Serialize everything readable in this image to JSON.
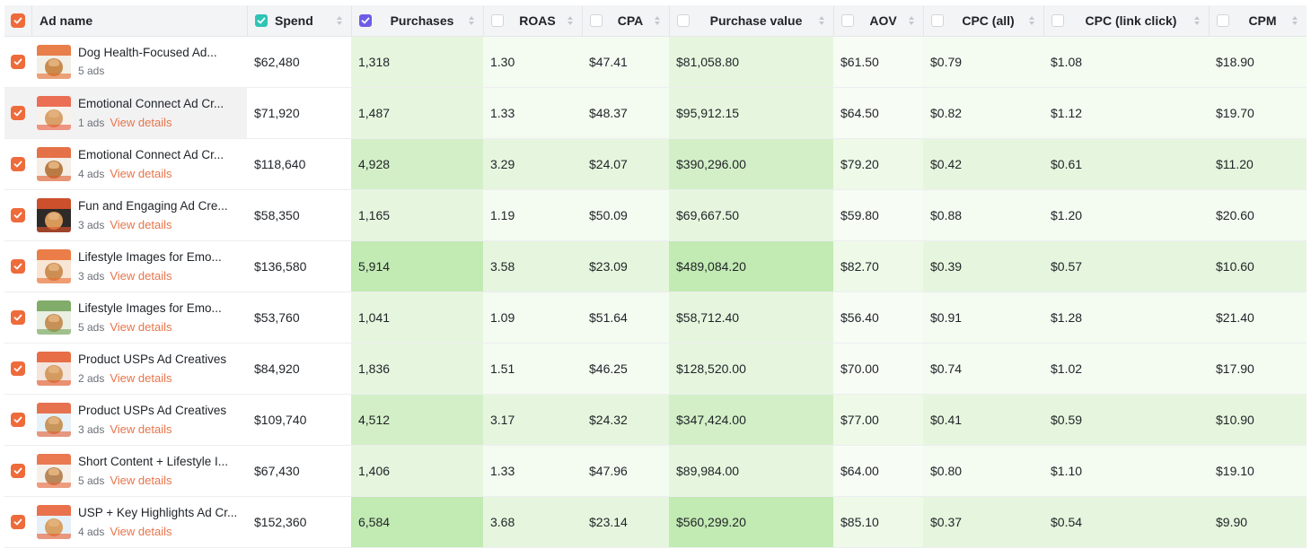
{
  "header": {
    "ad_name": "Ad name",
    "columns": [
      "Spend",
      "Purchases",
      "ROAS",
      "CPA",
      "Purchase value",
      "AOV",
      "CPC (all)",
      "CPC (link click)",
      "CPM"
    ]
  },
  "view_details_label": "View details",
  "colors": {
    "accent": "#ee6b3b",
    "link": "#e8744a",
    "spend_checkbox": "#2ec4b6",
    "purchases_checkbox": "#6c5ce7"
  },
  "rows": [
    {
      "name": "Dog Health-Focused Ad...",
      "ads": "5 ads",
      "view_details": false,
      "spend": "$62,480",
      "purchases": "1,318",
      "roas": "1.30",
      "cpa": "$47.41",
      "purchase_value": "$81,058.80",
      "aov": "$61.50",
      "cpc_all": "$0.79",
      "cpc_link": "$1.08",
      "cpm": "$18.90"
    },
    {
      "name": "Emotional Connect Ad Cr...",
      "ads": "1 ads",
      "view_details": true,
      "spend": "$71,920",
      "purchases": "1,487",
      "roas": "1.33",
      "cpa": "$48.37",
      "purchase_value": "$95,912.15",
      "aov": "$64.50",
      "cpc_all": "$0.82",
      "cpc_link": "$1.12",
      "cpm": "$19.70"
    },
    {
      "name": "Emotional Connect Ad Cr...",
      "ads": "4 ads",
      "view_details": true,
      "spend": "$118,640",
      "purchases": "4,928",
      "roas": "3.29",
      "cpa": "$24.07",
      "purchase_value": "$390,296.00",
      "aov": "$79.20",
      "cpc_all": "$0.42",
      "cpc_link": "$0.61",
      "cpm": "$11.20"
    },
    {
      "name": "Fun and Engaging Ad Cre...",
      "ads": "3 ads",
      "view_details": true,
      "spend": "$58,350",
      "purchases": "1,165",
      "roas": "1.19",
      "cpa": "$50.09",
      "purchase_value": "$69,667.50",
      "aov": "$59.80",
      "cpc_all": "$0.88",
      "cpc_link": "$1.20",
      "cpm": "$20.60"
    },
    {
      "name": "Lifestyle Images for Emo...",
      "ads": "3 ads",
      "view_details": true,
      "spend": "$136,580",
      "purchases": "5,914",
      "roas": "3.58",
      "cpa": "$23.09",
      "purchase_value": "$489,084.20",
      "aov": "$82.70",
      "cpc_all": "$0.39",
      "cpc_link": "$0.57",
      "cpm": "$10.60"
    },
    {
      "name": "Lifestyle Images for Emo...",
      "ads": "5 ads",
      "view_details": true,
      "spend": "$53,760",
      "purchases": "1,041",
      "roas": "1.09",
      "cpa": "$51.64",
      "purchase_value": "$58,712.40",
      "aov": "$56.40",
      "cpc_all": "$0.91",
      "cpc_link": "$1.28",
      "cpm": "$21.40"
    },
    {
      "name": "Product USPs Ad Creatives",
      "ads": "2 ads",
      "view_details": true,
      "spend": "$84,920",
      "purchases": "1,836",
      "roas": "1.51",
      "cpa": "$46.25",
      "purchase_value": "$128,520.00",
      "aov": "$70.00",
      "cpc_all": "$0.74",
      "cpc_link": "$1.02",
      "cpm": "$17.90"
    },
    {
      "name": "Product USPs Ad Creatives",
      "ads": "3 ads",
      "view_details": true,
      "spend": "$109,740",
      "purchases": "4,512",
      "roas": "3.17",
      "cpa": "$24.32",
      "purchase_value": "$347,424.00",
      "aov": "$77.00",
      "cpc_all": "$0.41",
      "cpc_link": "$0.59",
      "cpm": "$10.90"
    },
    {
      "name": "Short Content + Lifestyle I...",
      "ads": "5 ads",
      "view_details": true,
      "spend": "$67,430",
      "purchases": "1,406",
      "roas": "1.33",
      "cpa": "$47.96",
      "purchase_value": "$89,984.00",
      "aov": "$64.00",
      "cpc_all": "$0.80",
      "cpc_link": "$1.10",
      "cpm": "$19.10"
    },
    {
      "name": "USP + Key Highlights Ad Cr...",
      "ads": "4 ads",
      "view_details": true,
      "spend": "$152,360",
      "purchases": "6,584",
      "roas": "3.68",
      "cpa": "$23.14",
      "purchase_value": "$560,299.20",
      "aov": "$85.10",
      "cpc_all": "$0.37",
      "cpc_link": "$0.54",
      "cpm": "$9.90"
    }
  ]
}
